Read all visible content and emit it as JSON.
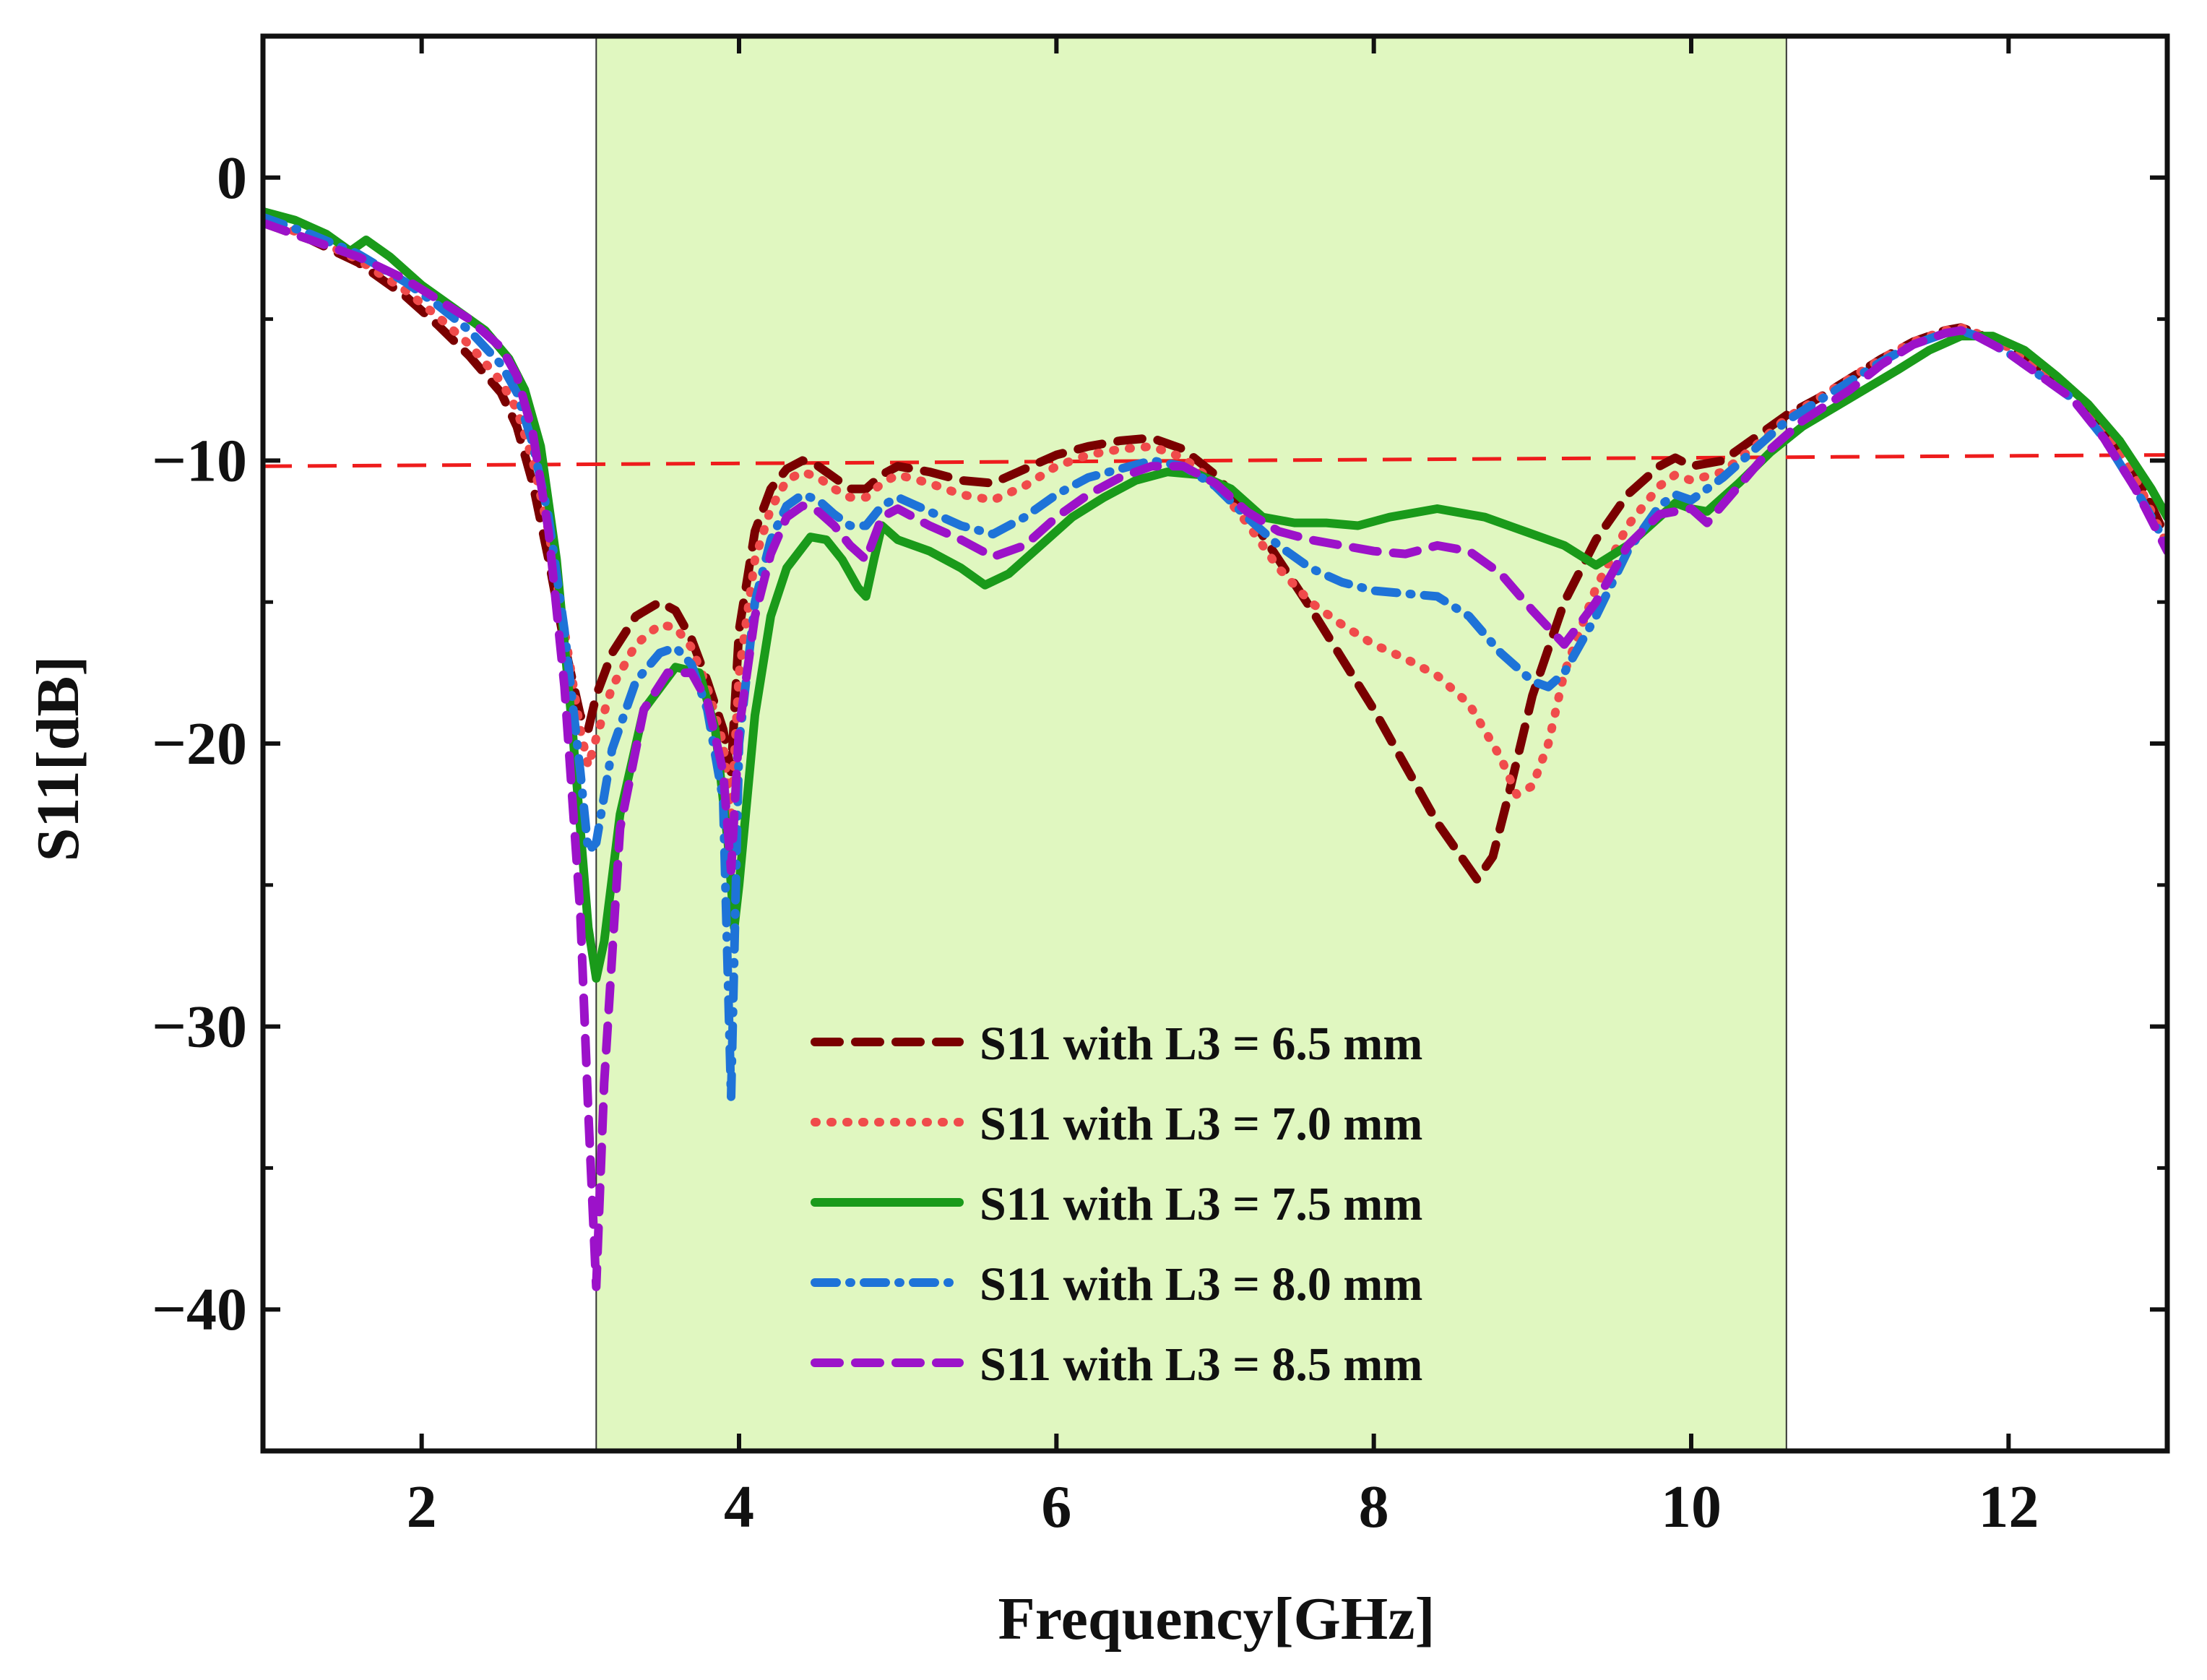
{
  "chart_data": {
    "type": "line",
    "title": "",
    "xlabel": "Frequency[GHz]",
    "ylabel": "S11[dB]",
    "xlim": [
      1,
      13
    ],
    "ylim": [
      -45,
      5
    ],
    "xticks": [
      2,
      4,
      6,
      8,
      10,
      12
    ],
    "xtick_labels": [
      "2",
      "4",
      "6",
      "8",
      "10",
      "12"
    ],
    "yticks": [
      0,
      -10,
      -20,
      -30,
      -40
    ],
    "ytick_labels": [
      "0",
      "−10",
      "−20",
      "−30",
      "−40"
    ],
    "grid": false,
    "legend_position": "lower-center",
    "band": {
      "x_start": 3.1,
      "x_end": 10.6,
      "color": "#e0f7c0"
    },
    "reference_line": {
      "x": [
        1,
        13
      ],
      "y": [
        -10.2,
        -9.8
      ],
      "color": "#ee1c1c"
    },
    "series": [
      {
        "name": "S11 with L3 = 6.5 mm",
        "color": "#7a0000",
        "style": "dash",
        "x": [
          1,
          1.3,
          1.6,
          1.9,
          2.1,
          2.3,
          2.5,
          2.6,
          2.7,
          2.8,
          2.9,
          3.0,
          3.05,
          3.1,
          3.2,
          3.35,
          3.5,
          3.6,
          3.7,
          3.8,
          3.9,
          3.95,
          4.0,
          4.1,
          4.2,
          4.3,
          4.4,
          4.5,
          4.6,
          4.7,
          4.8,
          4.9,
          5.0,
          5.2,
          5.4,
          5.6,
          5.8,
          6.0,
          6.2,
          6.4,
          6.6,
          6.8,
          7.0,
          7.2,
          7.4,
          7.6,
          7.8,
          8.0,
          8.2,
          8.4,
          8.55,
          8.65,
          8.75,
          8.85,
          9.0,
          9.2,
          9.4,
          9.6,
          9.8,
          9.9,
          10.0,
          10.2,
          10.4,
          10.6,
          10.8,
          11.0,
          11.2,
          11.4,
          11.6,
          11.7,
          11.8,
          12.0,
          12.2,
          12.4,
          12.6,
          12.8,
          13.0
        ],
        "y": [
          -1.6,
          -2.2,
          -3.0,
          -4.2,
          -5.2,
          -6.3,
          -7.6,
          -8.8,
          -10.8,
          -13.5,
          -16.5,
          -19.0,
          -19.5,
          -18.3,
          -16.8,
          -15.5,
          -15.0,
          -15.3,
          -16.3,
          -17.8,
          -19.5,
          -21.0,
          -16.0,
          -12.5,
          -11.0,
          -10.3,
          -10.0,
          -10.2,
          -10.6,
          -11.0,
          -11.0,
          -10.5,
          -10.2,
          -10.4,
          -10.7,
          -10.8,
          -10.3,
          -9.8,
          -9.5,
          -9.3,
          -9.2,
          -9.6,
          -10.5,
          -11.8,
          -13.5,
          -15.2,
          -17.0,
          -18.8,
          -20.8,
          -22.8,
          -24.0,
          -24.8,
          -24.0,
          -21.8,
          -18.3,
          -15.0,
          -12.8,
          -11.2,
          -10.2,
          -9.9,
          -10.2,
          -10.0,
          -9.2,
          -8.4,
          -7.8,
          -7.1,
          -6.4,
          -5.8,
          -5.4,
          -5.3,
          -5.5,
          -6.0,
          -6.8,
          -7.6,
          -8.8,
          -10.4,
          -12.8
        ]
      },
      {
        "name": "S11 with L3 = 7.0 mm",
        "color": "#f04b4b",
        "style": "dot",
        "x": [
          1,
          1.3,
          1.6,
          1.9,
          2.1,
          2.3,
          2.5,
          2.6,
          2.7,
          2.8,
          2.9,
          3.0,
          3.05,
          3.1,
          3.2,
          3.35,
          3.5,
          3.6,
          3.7,
          3.8,
          3.9,
          3.95,
          4.0,
          4.1,
          4.2,
          4.3,
          4.4,
          4.5,
          4.6,
          4.7,
          4.8,
          4.9,
          5.0,
          5.2,
          5.4,
          5.6,
          5.8,
          6.0,
          6.2,
          6.4,
          6.6,
          6.8,
          7.0,
          7.2,
          7.4,
          7.6,
          7.8,
          8.0,
          8.2,
          8.4,
          8.6,
          8.8,
          8.9,
          9.0,
          9.1,
          9.2,
          9.4,
          9.6,
          9.8,
          9.9,
          10.0,
          10.2,
          10.4,
          10.6,
          10.8,
          11.0,
          11.2,
          11.4,
          11.6,
          11.7,
          11.8,
          12.0,
          12.2,
          12.4,
          12.6,
          12.8,
          13.0
        ],
        "y": [
          -1.5,
          -2.1,
          -2.9,
          -4.0,
          -4.9,
          -5.9,
          -7.2,
          -8.2,
          -10.0,
          -12.5,
          -16.0,
          -19.5,
          -20.8,
          -19.8,
          -18.0,
          -16.5,
          -15.8,
          -15.9,
          -16.6,
          -18.0,
          -20.0,
          -22.5,
          -17.5,
          -13.5,
          -11.7,
          -10.7,
          -10.4,
          -10.6,
          -11.0,
          -11.3,
          -11.3,
          -10.8,
          -10.5,
          -10.8,
          -11.2,
          -11.4,
          -10.9,
          -10.2,
          -9.8,
          -9.6,
          -9.5,
          -9.9,
          -10.8,
          -12.2,
          -13.8,
          -15.0,
          -15.8,
          -16.5,
          -17.0,
          -17.6,
          -18.6,
          -20.5,
          -21.8,
          -21.5,
          -20.0,
          -17.5,
          -14.5,
          -12.3,
          -10.9,
          -10.5,
          -10.7,
          -10.4,
          -9.5,
          -8.5,
          -7.8,
          -7.1,
          -6.4,
          -5.8,
          -5.4,
          -5.3,
          -5.5,
          -6.0,
          -6.8,
          -7.6,
          -8.8,
          -10.6,
          -13.0
        ]
      },
      {
        "name": "S11 with L3 = 7.5 mm",
        "color": "#1a9a1a",
        "style": "solid",
        "x": [
          1,
          1.2,
          1.4,
          1.55,
          1.65,
          1.8,
          2.0,
          2.2,
          2.4,
          2.55,
          2.65,
          2.75,
          2.85,
          2.95,
          3.0,
          3.05,
          3.1,
          3.15,
          3.25,
          3.4,
          3.6,
          3.75,
          3.85,
          3.93,
          3.97,
          4.0,
          4.1,
          4.2,
          4.3,
          4.45,
          4.55,
          4.65,
          4.75,
          4.8,
          4.85,
          4.9,
          5.0,
          5.2,
          5.4,
          5.55,
          5.7,
          5.9,
          6.1,
          6.3,
          6.5,
          6.7,
          6.9,
          7.1,
          7.3,
          7.5,
          7.7,
          7.9,
          8.1,
          8.4,
          8.7,
          9.0,
          9.2,
          9.4,
          9.6,
          9.8,
          9.9,
          10.0,
          10.1,
          10.3,
          10.5,
          10.7,
          11.0,
          11.3,
          11.5,
          11.7,
          11.9,
          12.1,
          12.3,
          12.5,
          12.7,
          12.9,
          13.0
        ],
        "y": [
          -1.2,
          -1.5,
          -2.0,
          -2.6,
          -2.2,
          -2.8,
          -3.8,
          -4.6,
          -5.4,
          -6.4,
          -7.5,
          -9.5,
          -13.5,
          -19.5,
          -23.0,
          -26.5,
          -28.3,
          -27.0,
          -22.5,
          -18.8,
          -17.3,
          -17.5,
          -19.5,
          -23.5,
          -26.5,
          -25.0,
          -19.0,
          -15.5,
          -13.8,
          -12.7,
          -12.8,
          -13.5,
          -14.5,
          -14.8,
          -13.5,
          -12.3,
          -12.8,
          -13.2,
          -13.8,
          -14.4,
          -14.0,
          -13.0,
          -12.0,
          -11.3,
          -10.7,
          -10.4,
          -10.5,
          -11.0,
          -12.0,
          -12.2,
          -12.2,
          -12.3,
          -12.0,
          -11.7,
          -12.0,
          -12.6,
          -13.0,
          -13.7,
          -13.0,
          -12.0,
          -11.5,
          -11.7,
          -11.8,
          -10.8,
          -9.7,
          -8.8,
          -7.8,
          -6.8,
          -6.1,
          -5.6,
          -5.6,
          -6.1,
          -7.0,
          -8.0,
          -9.3,
          -11.0,
          -12.0
        ]
      },
      {
        "name": "S11 with L3 = 8.0 mm",
        "color": "#1e73d8",
        "style": "dashdot",
        "x": [
          1,
          1.3,
          1.6,
          1.9,
          2.1,
          2.3,
          2.5,
          2.6,
          2.7,
          2.8,
          2.9,
          3.0,
          3.05,
          3.1,
          3.2,
          3.35,
          3.5,
          3.6,
          3.7,
          3.8,
          3.9,
          3.95,
          4.0,
          4.1,
          4.2,
          4.3,
          4.4,
          4.5,
          4.6,
          4.7,
          4.8,
          4.9,
          5.0,
          5.2,
          5.4,
          5.6,
          5.8,
          6.0,
          6.2,
          6.4,
          6.6,
          6.8,
          7.0,
          7.2,
          7.4,
          7.6,
          7.8,
          8.0,
          8.2,
          8.4,
          8.6,
          8.8,
          9.0,
          9.1,
          9.2,
          9.4,
          9.6,
          9.8,
          9.9,
          10.0,
          10.2,
          10.4,
          10.6,
          10.8,
          11.0,
          11.2,
          11.4,
          11.6,
          11.7,
          11.8,
          12.0,
          12.2,
          12.4,
          12.6,
          12.8,
          13.0
        ],
        "y": [
          -1.4,
          -2.0,
          -2.7,
          -3.7,
          -4.5,
          -5.4,
          -6.6,
          -7.6,
          -9.4,
          -12.0,
          -16.0,
          -21.0,
          -23.8,
          -23.5,
          -20.2,
          -17.8,
          -16.8,
          -16.6,
          -17.2,
          -18.8,
          -22.0,
          -32.5,
          -20.0,
          -15.0,
          -12.8,
          -11.6,
          -11.2,
          -11.4,
          -11.9,
          -12.3,
          -12.3,
          -11.6,
          -11.3,
          -11.8,
          -12.3,
          -12.6,
          -12.0,
          -11.2,
          -10.6,
          -10.3,
          -10.0,
          -10.2,
          -10.9,
          -12.0,
          -13.0,
          -13.8,
          -14.3,
          -14.6,
          -14.7,
          -14.8,
          -15.5,
          -16.8,
          -17.8,
          -18.0,
          -17.5,
          -15.5,
          -13.2,
          -11.6,
          -11.2,
          -11.4,
          -10.6,
          -9.6,
          -8.6,
          -7.9,
          -7.2,
          -6.5,
          -5.9,
          -5.5,
          -5.4,
          -5.6,
          -6.2,
          -7.0,
          -7.8,
          -9.2,
          -11.0,
          -13.0
        ]
      },
      {
        "name": "S11 with L3 = 8.5 mm",
        "color": "#9c12c9",
        "style": "dash",
        "x": [
          1,
          1.3,
          1.6,
          1.9,
          2.1,
          2.3,
          2.5,
          2.6,
          2.7,
          2.8,
          2.9,
          3.0,
          3.05,
          3.1,
          3.15,
          3.25,
          3.4,
          3.55,
          3.7,
          3.8,
          3.9,
          3.95,
          4.0,
          4.1,
          4.2,
          4.3,
          4.4,
          4.5,
          4.6,
          4.7,
          4.8,
          4.9,
          5.0,
          5.2,
          5.4,
          5.6,
          5.8,
          6.0,
          6.2,
          6.4,
          6.6,
          6.8,
          7.0,
          7.2,
          7.4,
          7.6,
          7.8,
          8.0,
          8.2,
          8.4,
          8.6,
          8.8,
          9.0,
          9.2,
          9.4,
          9.6,
          9.8,
          10.0,
          10.1,
          10.3,
          10.5,
          10.7,
          11.0,
          11.2,
          11.4,
          11.6,
          11.7,
          11.8,
          12.0,
          12.2,
          12.4,
          12.6,
          12.8,
          13.0
        ],
        "y": [
          -1.6,
          -2.2,
          -2.8,
          -3.6,
          -4.3,
          -5.0,
          -6.0,
          -7.0,
          -9.0,
          -12.5,
          -18.0,
          -26.0,
          -33.0,
          -39.2,
          -32.0,
          -23.0,
          -18.8,
          -17.5,
          -17.5,
          -18.5,
          -21.0,
          -24.5,
          -19.5,
          -15.5,
          -13.3,
          -12.0,
          -11.6,
          -11.8,
          -12.3,
          -13.0,
          -13.5,
          -12.0,
          -11.7,
          -12.3,
          -12.8,
          -13.4,
          -13.0,
          -12.0,
          -11.2,
          -10.6,
          -10.2,
          -10.2,
          -10.8,
          -11.8,
          -12.5,
          -12.8,
          -13.0,
          -13.2,
          -13.3,
          -13.0,
          -13.2,
          -14.0,
          -15.3,
          -16.5,
          -15.0,
          -13.0,
          -11.9,
          -11.7,
          -12.2,
          -10.9,
          -9.6,
          -8.6,
          -7.5,
          -6.6,
          -5.9,
          -5.5,
          -5.4,
          -5.6,
          -6.2,
          -7.0,
          -7.8,
          -9.2,
          -11.0,
          -13.2
        ]
      }
    ]
  }
}
